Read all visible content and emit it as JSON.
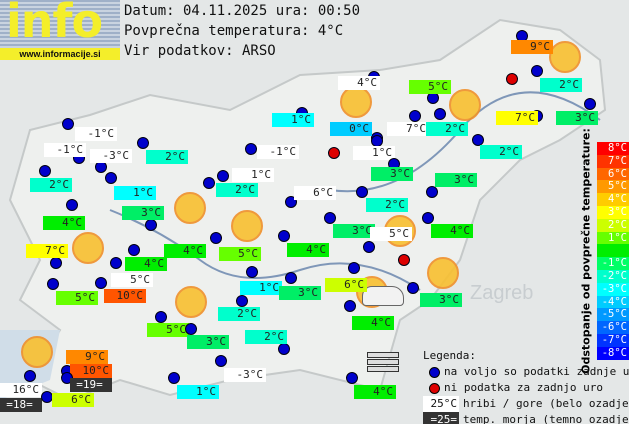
{
  "logo": {
    "text": "info",
    "url": "www.informacije.si"
  },
  "header": {
    "date_line": "Datum: 04.11.2025 ura: 00:50",
    "avg_line": "Povprečna temperatura: 4°C",
    "source_line": "Vir podatkov: ARSO"
  },
  "map_label": "Zagreb",
  "stations": [
    {
      "t": "9°C",
      "bg": "#ff8800"
    },
    {
      "t": "4°C",
      "bg": "#ffffff"
    },
    {
      "t": "5°C",
      "bg": "#66ff00"
    },
    {
      "t": "2°C",
      "bg": "#00ffcc"
    },
    {
      "t": "3°C",
      "bg": "#00ee66"
    },
    {
      "t": "7°C",
      "bg": "#ffff00"
    },
    {
      "t": "7°C",
      "bg": "#ffffff"
    },
    {
      "t": "2°C",
      "bg": "#00ffcc"
    },
    {
      "t": "0°C",
      "bg": "#00ccff"
    },
    {
      "t": "1°C",
      "bg": "#00ffff"
    },
    {
      "t": "-1°C",
      "bg": "#ffffff"
    },
    {
      "t": "-1°C",
      "bg": "#ffffff"
    },
    {
      "t": "-3°C",
      "bg": "#ffffff"
    },
    {
      "t": "2°C",
      "bg": "#00ffcc"
    },
    {
      "t": "-1°C",
      "bg": "#ffffff"
    },
    {
      "t": "1°C",
      "bg": "#ffffff"
    },
    {
      "t": "2°C",
      "bg": "#00ffcc"
    },
    {
      "t": "1°C",
      "bg": "#00ffff"
    },
    {
      "t": "1°C",
      "bg": "#ffffff"
    },
    {
      "t": "2°C",
      "bg": "#00ffcc"
    },
    {
      "t": "3°C",
      "bg": "#00ee66"
    },
    {
      "t": "3°C",
      "bg": "#00ee66"
    },
    {
      "t": "2°C",
      "bg": "#00ffcc"
    },
    {
      "t": "6°C",
      "bg": "#ffffff"
    },
    {
      "t": "2°C",
      "bg": "#00ffcc"
    },
    {
      "t": "3°C",
      "bg": "#00ee66"
    },
    {
      "t": "4°C",
      "bg": "#00ee00"
    },
    {
      "t": "3°C",
      "bg": "#00ee66"
    },
    {
      "t": "5°C",
      "bg": "#ffffff"
    },
    {
      "t": "4°C",
      "bg": "#00ee00"
    },
    {
      "t": "7°C",
      "bg": "#ffff00"
    },
    {
      "t": "4°C",
      "bg": "#00ee00"
    },
    {
      "t": "4°C",
      "bg": "#00ee00"
    },
    {
      "t": "5°C",
      "bg": "#66ff00"
    },
    {
      "t": "4°C",
      "bg": "#00ee00"
    },
    {
      "t": "5°C",
      "bg": "#ffffff"
    },
    {
      "t": "10°C",
      "bg": "#ff5500"
    },
    {
      "t": "5°C",
      "bg": "#66ff00"
    },
    {
      "t": "1°C",
      "bg": "#00ffff"
    },
    {
      "t": "3°C",
      "bg": "#00ee66"
    },
    {
      "t": "6°C",
      "bg": "#ccff00"
    },
    {
      "t": "3°C",
      "bg": "#00ee66"
    },
    {
      "t": "4°C",
      "bg": "#00ee00"
    },
    {
      "t": "2°C",
      "bg": "#00ffcc"
    },
    {
      "t": "5°C",
      "bg": "#66ff00"
    },
    {
      "t": "3°C",
      "bg": "#00ee66"
    },
    {
      "t": "2°C",
      "bg": "#00ffcc"
    },
    {
      "t": "9°C",
      "bg": "#ff8800"
    },
    {
      "t": "10°C",
      "bg": "#ff5500"
    },
    {
      "t": "=19=",
      "bg": "#333333"
    },
    {
      "t": "16°C",
      "bg": "#ffffff"
    },
    {
      "t": "=18=",
      "bg": "#333333"
    },
    {
      "t": "6°C",
      "bg": "#ccff00"
    },
    {
      "t": "-3°C",
      "bg": "#ffffff"
    },
    {
      "t": "1°C",
      "bg": "#00ffff"
    },
    {
      "t": "4°C",
      "bg": "#00ee00"
    }
  ],
  "scale": {
    "title": "Odstopanje od povprečne temperature:",
    "steps": [
      {
        "label": "8°C",
        "color": "#ff0000"
      },
      {
        "label": "7°C",
        "color": "#ff3300"
      },
      {
        "label": "6°C",
        "color": "#ff6600"
      },
      {
        "label": "5°C",
        "color": "#ff9900"
      },
      {
        "label": "4°C",
        "color": "#ffcc00"
      },
      {
        "label": "3°C",
        "color": "#ffff00"
      },
      {
        "label": "2°C",
        "color": "#ccff00"
      },
      {
        "label": "1°C",
        "color": "#66ff00"
      },
      {
        "label": "",
        "color": "#00ee00"
      },
      {
        "label": "-1°C",
        "color": "#00ff66"
      },
      {
        "label": "-2°C",
        "color": "#00ffcc"
      },
      {
        "label": "-3°C",
        "color": "#00ffff"
      },
      {
        "label": "-4°C",
        "color": "#00ccff"
      },
      {
        "label": "-5°C",
        "color": "#0099ff"
      },
      {
        "label": "-6°C",
        "color": "#0066ff"
      },
      {
        "label": "-7°C",
        "color": "#0033ff"
      },
      {
        "label": "-8°C",
        "color": "#0000ff"
      }
    ]
  },
  "legend": {
    "title": "Legenda:",
    "available": "na voljo so podatki zadnje ure",
    "missing": "ni podatka za zadnjo uro",
    "mountain_sample": "25°C",
    "mountain": "hribi / gore (belo ozadje)",
    "sea_sample": "=25=",
    "sea": "temp. morja (temno ozadje)"
  },
  "colors": {
    "station_ok": "#0000cc",
    "station_missing": "#dd0000",
    "sun": "#f8c030"
  }
}
